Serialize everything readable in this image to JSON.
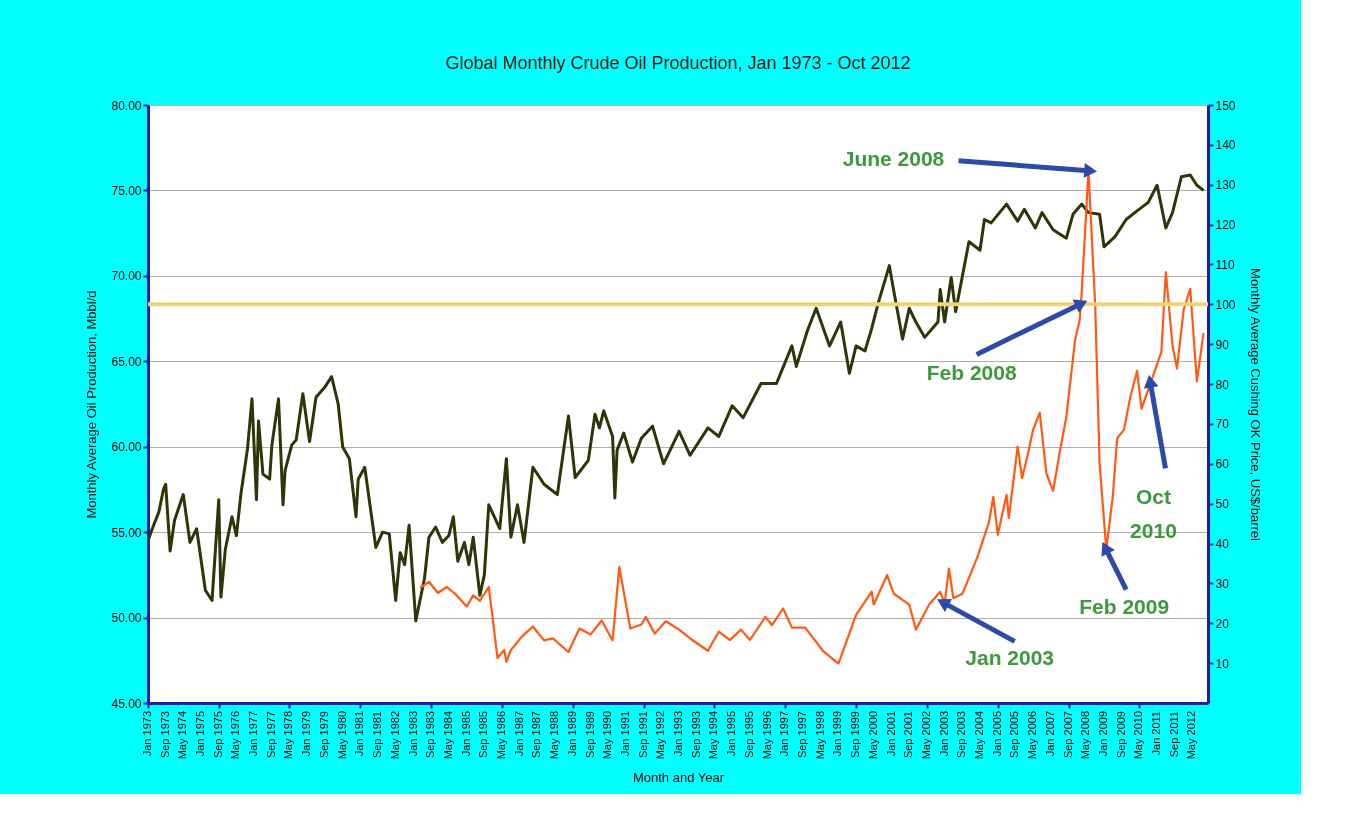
{
  "chart_data": {
    "type": "line",
    "title": "Global Monthly Crude Oil Production, Jan 1973 - Oct 2012",
    "xlabel": "Month and Year",
    "ylabel": "Monthly Average Oil Production, Mbbl/d",
    "y2label": "Monthly Average Cushing OK Price, US$/barrel",
    "xlim": [
      "1973-01",
      "2012-12"
    ],
    "xticks": [
      {
        "value": "1973-01",
        "label": "Jan 1973"
      },
      {
        "value": "1973-09",
        "label": "Sep 1973"
      },
      {
        "value": "1974-05",
        "label": "May 1974"
      },
      {
        "value": "1975-01",
        "label": "Jan 1975"
      },
      {
        "value": "1975-09",
        "label": "Sep 1975"
      },
      {
        "value": "1976-05",
        "label": "May 1976"
      },
      {
        "value": "1977-01",
        "label": "Jan 1977"
      },
      {
        "value": "1977-09",
        "label": "Sep 1977"
      },
      {
        "value": "1978-05",
        "label": "May 1978"
      },
      {
        "value": "1979-01",
        "label": "Jan 1979"
      },
      {
        "value": "1979-09",
        "label": "Sep 1979"
      },
      {
        "value": "1980-05",
        "label": "May 1980"
      },
      {
        "value": "1981-01",
        "label": "Jan 1981"
      },
      {
        "value": "1981-09",
        "label": "Sep 1981"
      },
      {
        "value": "1982-05",
        "label": "May 1982"
      },
      {
        "value": "1983-01",
        "label": "Jan 1983"
      },
      {
        "value": "1983-09",
        "label": "Sep 1983"
      },
      {
        "value": "1984-05",
        "label": "May 1984"
      },
      {
        "value": "1985-01",
        "label": "Jan 1985"
      },
      {
        "value": "1985-09",
        "label": "Sep 1985"
      },
      {
        "value": "1986-05",
        "label": "May 1986"
      },
      {
        "value": "1987-01",
        "label": "Jan 1987"
      },
      {
        "value": "1987-09",
        "label": "Sep 1987"
      },
      {
        "value": "1988-05",
        "label": "May 1988"
      },
      {
        "value": "1989-01",
        "label": "Jan 1989"
      },
      {
        "value": "1989-09",
        "label": "Sep 1989"
      },
      {
        "value": "1990-05",
        "label": "May 1990"
      },
      {
        "value": "1991-01",
        "label": "Jan 1991"
      },
      {
        "value": "1991-09",
        "label": "Sep 1991"
      },
      {
        "value": "1992-05",
        "label": "May 1992"
      },
      {
        "value": "1993-01",
        "label": "Jan 1993"
      },
      {
        "value": "1993-09",
        "label": "Sep 1993"
      },
      {
        "value": "1994-05",
        "label": "May 1994"
      },
      {
        "value": "1995-01",
        "label": "Jan 1995"
      },
      {
        "value": "1995-09",
        "label": "Sep 1995"
      },
      {
        "value": "1996-05",
        "label": "May 1996"
      },
      {
        "value": "1997-01",
        "label": "Jan 1997"
      },
      {
        "value": "1997-09",
        "label": "Sep 1997"
      },
      {
        "value": "1998-05",
        "label": "May 1998"
      },
      {
        "value": "1999-01",
        "label": "Jan 1999"
      },
      {
        "value": "1999-09",
        "label": "Sep 1999"
      },
      {
        "value": "2000-05",
        "label": "May 2000"
      },
      {
        "value": "2001-01",
        "label": "Jan 2001"
      },
      {
        "value": "2001-09",
        "label": "Sep 2001"
      },
      {
        "value": "2002-05",
        "label": "May 2002"
      },
      {
        "value": "2003-01",
        "label": "Jan 2003"
      },
      {
        "value": "2003-09",
        "label": "Sep 2003"
      },
      {
        "value": "2004-05",
        "label": "May 2004"
      },
      {
        "value": "2005-01",
        "label": "Jan 2005"
      },
      {
        "value": "2005-09",
        "label": "Sep 2005"
      },
      {
        "value": "2006-05",
        "label": "May 2006"
      },
      {
        "value": "2007-01",
        "label": "Jan 2007"
      },
      {
        "value": "2007-09",
        "label": "Sep 2007"
      },
      {
        "value": "2008-05",
        "label": "May 2008"
      },
      {
        "value": "2009-01",
        "label": "Jan 2009"
      },
      {
        "value": "2009-09",
        "label": "Sep 2009"
      },
      {
        "value": "2010-05",
        "label": "May 2010"
      },
      {
        "value": "2011-01",
        "label": "Jan 2011"
      },
      {
        "value": "2011-09",
        "label": "Sep 2011"
      },
      {
        "value": "2012-05",
        "label": "May 2012"
      }
    ],
    "ylim": [
      45,
      80
    ],
    "yticks": [
      {
        "value": 45,
        "label": "45.00"
      },
      {
        "value": 50,
        "label": "50.00"
      },
      {
        "value": 55,
        "label": "55.00"
      },
      {
        "value": 60,
        "label": "60.00"
      },
      {
        "value": 65,
        "label": "65.00"
      },
      {
        "value": 70,
        "label": "70.00"
      },
      {
        "value": 75,
        "label": "75.00"
      },
      {
        "value": 80,
        "label": "80.00"
      }
    ],
    "y2lim": [
      0,
      150
    ],
    "y2ticks": [
      10,
      20,
      30,
      40,
      50,
      60,
      70,
      80,
      90,
      100,
      110,
      120,
      130,
      140,
      150
    ],
    "grid": "y",
    "line_style": "solid",
    "series": [
      {
        "color": "#2d3608",
        "x": [
          "1973-01",
          "1973-03",
          "1973-06",
          "1973-08",
          "1973-09",
          "1973-11",
          "1974-01",
          "1974-05",
          "1974-08",
          "1974-11",
          "1975-03",
          "1975-06",
          "1975-09",
          "1975-10",
          "1975-12",
          "1976-03",
          "1976-05",
          "1976-07",
          "1976-10",
          "1976-12",
          "1977-02",
          "1977-03",
          "1977-05",
          "1977-08",
          "1977-09",
          "1977-12",
          "1978-02",
          "1978-03",
          "1978-06",
          "1978-08",
          "1978-11",
          "1979-02",
          "1979-05",
          "1979-09",
          "1979-12",
          "1980-03",
          "1980-05",
          "1980-08",
          "1980-11",
          "1980-12",
          "1981-03",
          "1981-08",
          "1981-11",
          "1982-02",
          "1982-05",
          "1982-07",
          "1982-09",
          "1982-11",
          "1983-02",
          "1983-06",
          "1983-08",
          "1983-11",
          "1984-02",
          "1984-05",
          "1984-07",
          "1984-09",
          "1984-12",
          "1985-02",
          "1985-04",
          "1985-07",
          "1985-09",
          "1985-11",
          "1986-04",
          "1986-07",
          "1986-09",
          "1986-12",
          "1987-03",
          "1987-07",
          "1987-12",
          "1988-06",
          "1988-11",
          "1989-02",
          "1989-08",
          "1989-11",
          "1990-01",
          "1990-03",
          "1990-07",
          "1990-08",
          "1990-09",
          "1990-12",
          "1991-04",
          "1991-08",
          "1992-01",
          "1992-06",
          "1993-01",
          "1993-06",
          "1994-02",
          "1994-07",
          "1995-01",
          "1995-06",
          "1996-02",
          "1996-09",
          "1997-04",
          "1997-06",
          "1997-11",
          "1998-03",
          "1998-09",
          "1999-02",
          "1999-06",
          "1999-09",
          "2000-01",
          "2000-04",
          "2000-07",
          "2000-12",
          "2001-02",
          "2001-06",
          "2001-09",
          "2001-12",
          "2002-04",
          "2002-10",
          "2002-11",
          "2003-01",
          "2003-04",
          "2003-06",
          "2003-12",
          "2004-05",
          "2004-07",
          "2004-10",
          "2005-05",
          "2005-10",
          "2006-01",
          "2006-06",
          "2006-09",
          "2007-02",
          "2007-08",
          "2007-11",
          "2008-03",
          "2008-06",
          "2008-11",
          "2009-01",
          "2009-06",
          "2009-11",
          "2010-04",
          "2010-09",
          "2011-01",
          "2011-05",
          "2011-08",
          "2011-12",
          "2012-04",
          "2012-07",
          "2012-10"
        ],
        "values": [
          54.5,
          55.2,
          56.2,
          57.5,
          57.8,
          53.9,
          55.7,
          57.2,
          54.4,
          55.2,
          51.6,
          51.0,
          56.9,
          51.2,
          54.0,
          55.9,
          54.8,
          57.2,
          59.9,
          62.8,
          56.9,
          61.5,
          58.4,
          58.1,
          60.1,
          62.8,
          56.6,
          58.6,
          60.1,
          60.4,
          63.1,
          60.3,
          62.9,
          63.5,
          64.1,
          62.5,
          60.0,
          59.3,
          55.9,
          58.1,
          58.8,
          54.1,
          55.0,
          54.9,
          51.0,
          53.8,
          53.1,
          55.4,
          49.8,
          52.3,
          54.7,
          55.3,
          54.4,
          54.8,
          55.9,
          53.3,
          54.4,
          53.1,
          54.7,
          51.3,
          52.5,
          56.6,
          55.2,
          59.3,
          54.7,
          56.6,
          54.4,
          58.8,
          57.8,
          57.2,
          61.8,
          58.2,
          59.2,
          61.9,
          61.1,
          62.1,
          60.6,
          57.0,
          59.8,
          60.8,
          59.1,
          60.5,
          61.2,
          59.0,
          60.9,
          59.5,
          61.1,
          60.6,
          62.4,
          61.7,
          63.7,
          63.7,
          65.9,
          64.7,
          66.8,
          68.1,
          65.9,
          67.3,
          64.3,
          65.9,
          65.6,
          66.9,
          68.4,
          70.6,
          69.1,
          66.3,
          68.1,
          67.3,
          66.4,
          67.3,
          69.2,
          67.3,
          69.9,
          67.9,
          72.0,
          71.5,
          73.3,
          73.1,
          74.2,
          73.2,
          73.9,
          72.8,
          73.7,
          72.7,
          72.2,
          73.6,
          74.2,
          73.7,
          73.6,
          71.7,
          72.3,
          73.3,
          73.8,
          74.3,
          75.3,
          72.8,
          73.7,
          75.8,
          75.9,
          75.3,
          75.0
        ]
      },
      {
        "color": "#ff5a14",
        "axis": "y2",
        "x": [
          "1983-04",
          "1983-08",
          "1983-12",
          "1984-04",
          "1984-08",
          "1985-01",
          "1985-04",
          "1985-07",
          "1985-11",
          "1986-03",
          "1986-06",
          "1986-07",
          "1986-09",
          "1987-02",
          "1987-07",
          "1987-12",
          "1988-04",
          "1988-11",
          "1989-04",
          "1989-09",
          "1990-02",
          "1990-07",
          "1990-10",
          "1991-03",
          "1991-08",
          "1991-10",
          "1992-02",
          "1992-07",
          "1993-01",
          "1993-07",
          "1994-02",
          "1994-07",
          "1994-12",
          "1995-05",
          "1995-09",
          "1996-04",
          "1996-07",
          "1996-12",
          "1997-04",
          "1997-10",
          "1998-06",
          "1999-01",
          "1999-09",
          "2000-04",
          "2000-05",
          "2000-11",
          "2001-02",
          "2001-09",
          "2001-12",
          "2002-06",
          "2002-11",
          "2003-01",
          "2003-03",
          "2003-05",
          "2003-09",
          "2004-01",
          "2004-04",
          "2004-09",
          "2004-11",
          "2005-01",
          "2005-05",
          "2005-06",
          "2005-10",
          "2005-12",
          "2006-03",
          "2006-05",
          "2006-08",
          "2006-11",
          "2007-02",
          "2007-05",
          "2007-08",
          "2007-12",
          "2008-02",
          "2008-03",
          "2008-06",
          "2008-09",
          "2008-11",
          "2009-02",
          "2009-05",
          "2009-07",
          "2009-10",
          "2010-01",
          "2010-04",
          "2010-06",
          "2010-10",
          "2011-03",
          "2011-05",
          "2011-08",
          "2011-10",
          "2012-01",
          "2012-04",
          "2012-07",
          "2012-10"
        ],
        "values": [
          28.9,
          30.4,
          27.6,
          29.1,
          27.3,
          24.2,
          27.0,
          25.6,
          29.1,
          11.3,
          13.3,
          10.3,
          13.3,
          16.7,
          19.2,
          15.7,
          16.2,
          12.8,
          18.7,
          17.2,
          20.7,
          15.7,
          34.1,
          18.7,
          19.7,
          21.6,
          17.4,
          20.5,
          18.4,
          15.8,
          13.1,
          17.9,
          15.8,
          18.4,
          15.8,
          21.6,
          19.5,
          23.7,
          18.9,
          18.9,
          13.1,
          9.9,
          22.1,
          27.9,
          24.7,
          32.1,
          27.4,
          24.7,
          18.4,
          24.7,
          27.9,
          25.0,
          33.7,
          26.3,
          27.4,
          32.7,
          36.9,
          45.3,
          51.7,
          42.2,
          52.2,
          46.4,
          64.3,
          56.4,
          63.3,
          68.5,
          72.8,
          57.5,
          53.2,
          62.7,
          71.7,
          91.2,
          96.0,
          103.4,
          133.5,
          100.0,
          60.1,
          38.5,
          51.7,
          66.4,
          68.5,
          77.0,
          83.3,
          73.8,
          80.2,
          88.1,
          108.1,
          89.7,
          83.9,
          98.6,
          103.9,
          80.7,
          92.8
        ]
      }
    ],
    "ref_lines": [
      {
        "axis": "y2",
        "value": 100,
        "color": "#f3d17a"
      }
    ],
    "annotations": [
      {
        "text": "June 2008",
        "x": "2008-06",
        "y": 76.15
      },
      {
        "text": "Feb 2008",
        "x": "2008-02",
        "y": 68.33
      },
      {
        "text": "Jan 2003",
        "x": "2003-01",
        "y": 50.83
      },
      {
        "text": "Feb 2009",
        "x": "2009-02",
        "y": 53.98
      },
      {
        "text": "Oct\n2010",
        "x": "2010-10",
        "y": 63.71
      }
    ]
  }
}
